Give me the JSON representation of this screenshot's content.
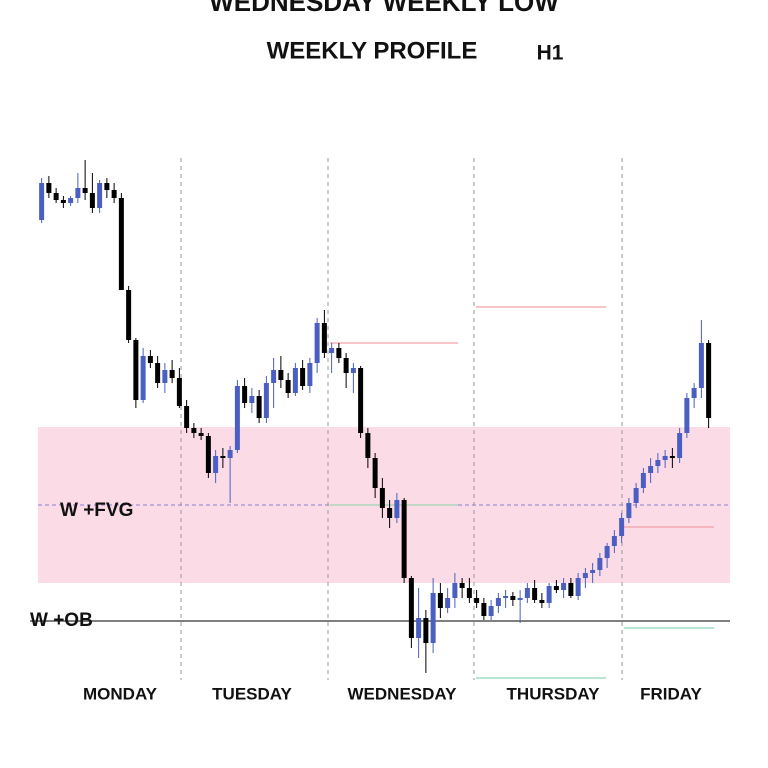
{
  "chart_data": {
    "type": "candlestick",
    "title": "WEDNESDAY WEEKLY LOW",
    "subtitle": "WEEKLY PROFILE",
    "timeframe": "H1",
    "categories": [
      "MONDAY",
      "TUESDAY",
      "WEDNESDAY",
      "THURSDAY",
      "FRIDAY"
    ],
    "highlight": 2,
    "highlight_color": "#1aa86a",
    "up_color": "#4a5fc1",
    "down_color": "#000000",
    "ylim": [
      80,
      640
    ],
    "open": [
      548,
      585,
      575,
      568,
      565,
      570,
      580,
      575,
      560,
      585,
      578,
      570,
      478,
      428,
      368,
      412,
      405,
      385,
      398,
      390,
      362,
      340,
      335,
      332,
      295,
      312,
      310,
      318,
      382,
      365,
      372,
      350,
      385,
      398,
      388,
      375,
      400,
      382,
      405,
      445,
      415,
      420,
      410,
      395,
      400,
      335,
      310,
      280,
      260,
      250,
      268,
      190,
      130,
      150,
      125,
      175,
      160,
      170,
      185,
      180,
      170,
      165,
      152,
      162,
      170,
      172,
      168,
      170,
      180,
      168,
      165,
      182,
      178,
      185,
      172,
      190,
      195,
      198,
      210,
      222,
      232,
      250,
      265,
      280,
      295,
      302,
      308,
      312,
      310,
      335,
      370,
      380,
      425
    ],
    "high": [
      590,
      592,
      580,
      572,
      572,
      595,
      608,
      595,
      588,
      590,
      585,
      575,
      482,
      430,
      420,
      418,
      412,
      405,
      408,
      400,
      368,
      345,
      340,
      335,
      318,
      320,
      322,
      388,
      390,
      380,
      378,
      392,
      410,
      412,
      395,
      405,
      408,
      410,
      450,
      458,
      425,
      425,
      415,
      405,
      402,
      340,
      315,
      290,
      268,
      275,
      270,
      192,
      180,
      158,
      190,
      185,
      180,
      195,
      190,
      190,
      178,
      170,
      168,
      175,
      178,
      176,
      178,
      185,
      188,
      175,
      185,
      188,
      190,
      190,
      195,
      200,
      205,
      215,
      225,
      238,
      255,
      270,
      285,
      300,
      310,
      315,
      318,
      320,
      340,
      375,
      385,
      448,
      428
    ],
    "low": [
      545,
      570,
      565,
      560,
      562,
      565,
      568,
      555,
      555,
      570,
      565,
      480,
      425,
      360,
      365,
      400,
      380,
      375,
      385,
      360,
      335,
      330,
      328,
      290,
      285,
      300,
      265,
      315,
      360,
      355,
      345,
      345,
      360,
      380,
      370,
      372,
      378,
      375,
      395,
      410,
      395,
      405,
      380,
      375,
      330,
      300,
      270,
      250,
      240,
      245,
      185,
      120,
      110,
      95,
      115,
      150,
      155,
      160,
      170,
      165,
      160,
      148,
      148,
      155,
      160,
      162,
      145,
      165,
      165,
      160,
      160,
      175,
      170,
      170,
      168,
      180,
      185,
      192,
      200,
      215,
      225,
      245,
      260,
      275,
      285,
      295,
      300,
      300,
      305,
      330,
      360,
      370,
      340
    ],
    "close": [
      585,
      575,
      568,
      565,
      570,
      580,
      575,
      560,
      585,
      578,
      570,
      478,
      428,
      368,
      412,
      405,
      385,
      398,
      390,
      362,
      340,
      335,
      332,
      295,
      312,
      310,
      318,
      382,
      365,
      372,
      350,
      385,
      398,
      388,
      375,
      400,
      382,
      405,
      445,
      415,
      420,
      410,
      395,
      400,
      335,
      310,
      280,
      260,
      250,
      268,
      190,
      130,
      150,
      125,
      175,
      160,
      170,
      185,
      180,
      170,
      165,
      152,
      162,
      170,
      172,
      168,
      170,
      180,
      168,
      165,
      182,
      178,
      185,
      172,
      190,
      195,
      198,
      210,
      222,
      232,
      250,
      265,
      280,
      295,
      302,
      308,
      312,
      310,
      335,
      370,
      380,
      425,
      350
    ],
    "fvg_zone": {
      "label": "W  +FVG",
      "low": 185,
      "high": 341,
      "mid": 263,
      "color": "#fbdce6",
      "line_color": "#8a7fd6"
    },
    "ob_level": {
      "label": "W +OB",
      "value": 147,
      "color": "#333333"
    },
    "levels": [
      {
        "value": 425,
        "color": "#f2a0a8",
        "day": 2
      },
      {
        "value": 263,
        "color": "#9bd6b4",
        "day": 2
      },
      {
        "value": 461,
        "color": "#f2a0a8",
        "day": 3
      },
      {
        "value": 90,
        "color": "#8fd6b8",
        "day": 3
      },
      {
        "value": 241,
        "color": "#f2a0a8",
        "day": 4
      },
      {
        "value": 140,
        "color": "#8fd6b8",
        "day": 4
      }
    ]
  }
}
